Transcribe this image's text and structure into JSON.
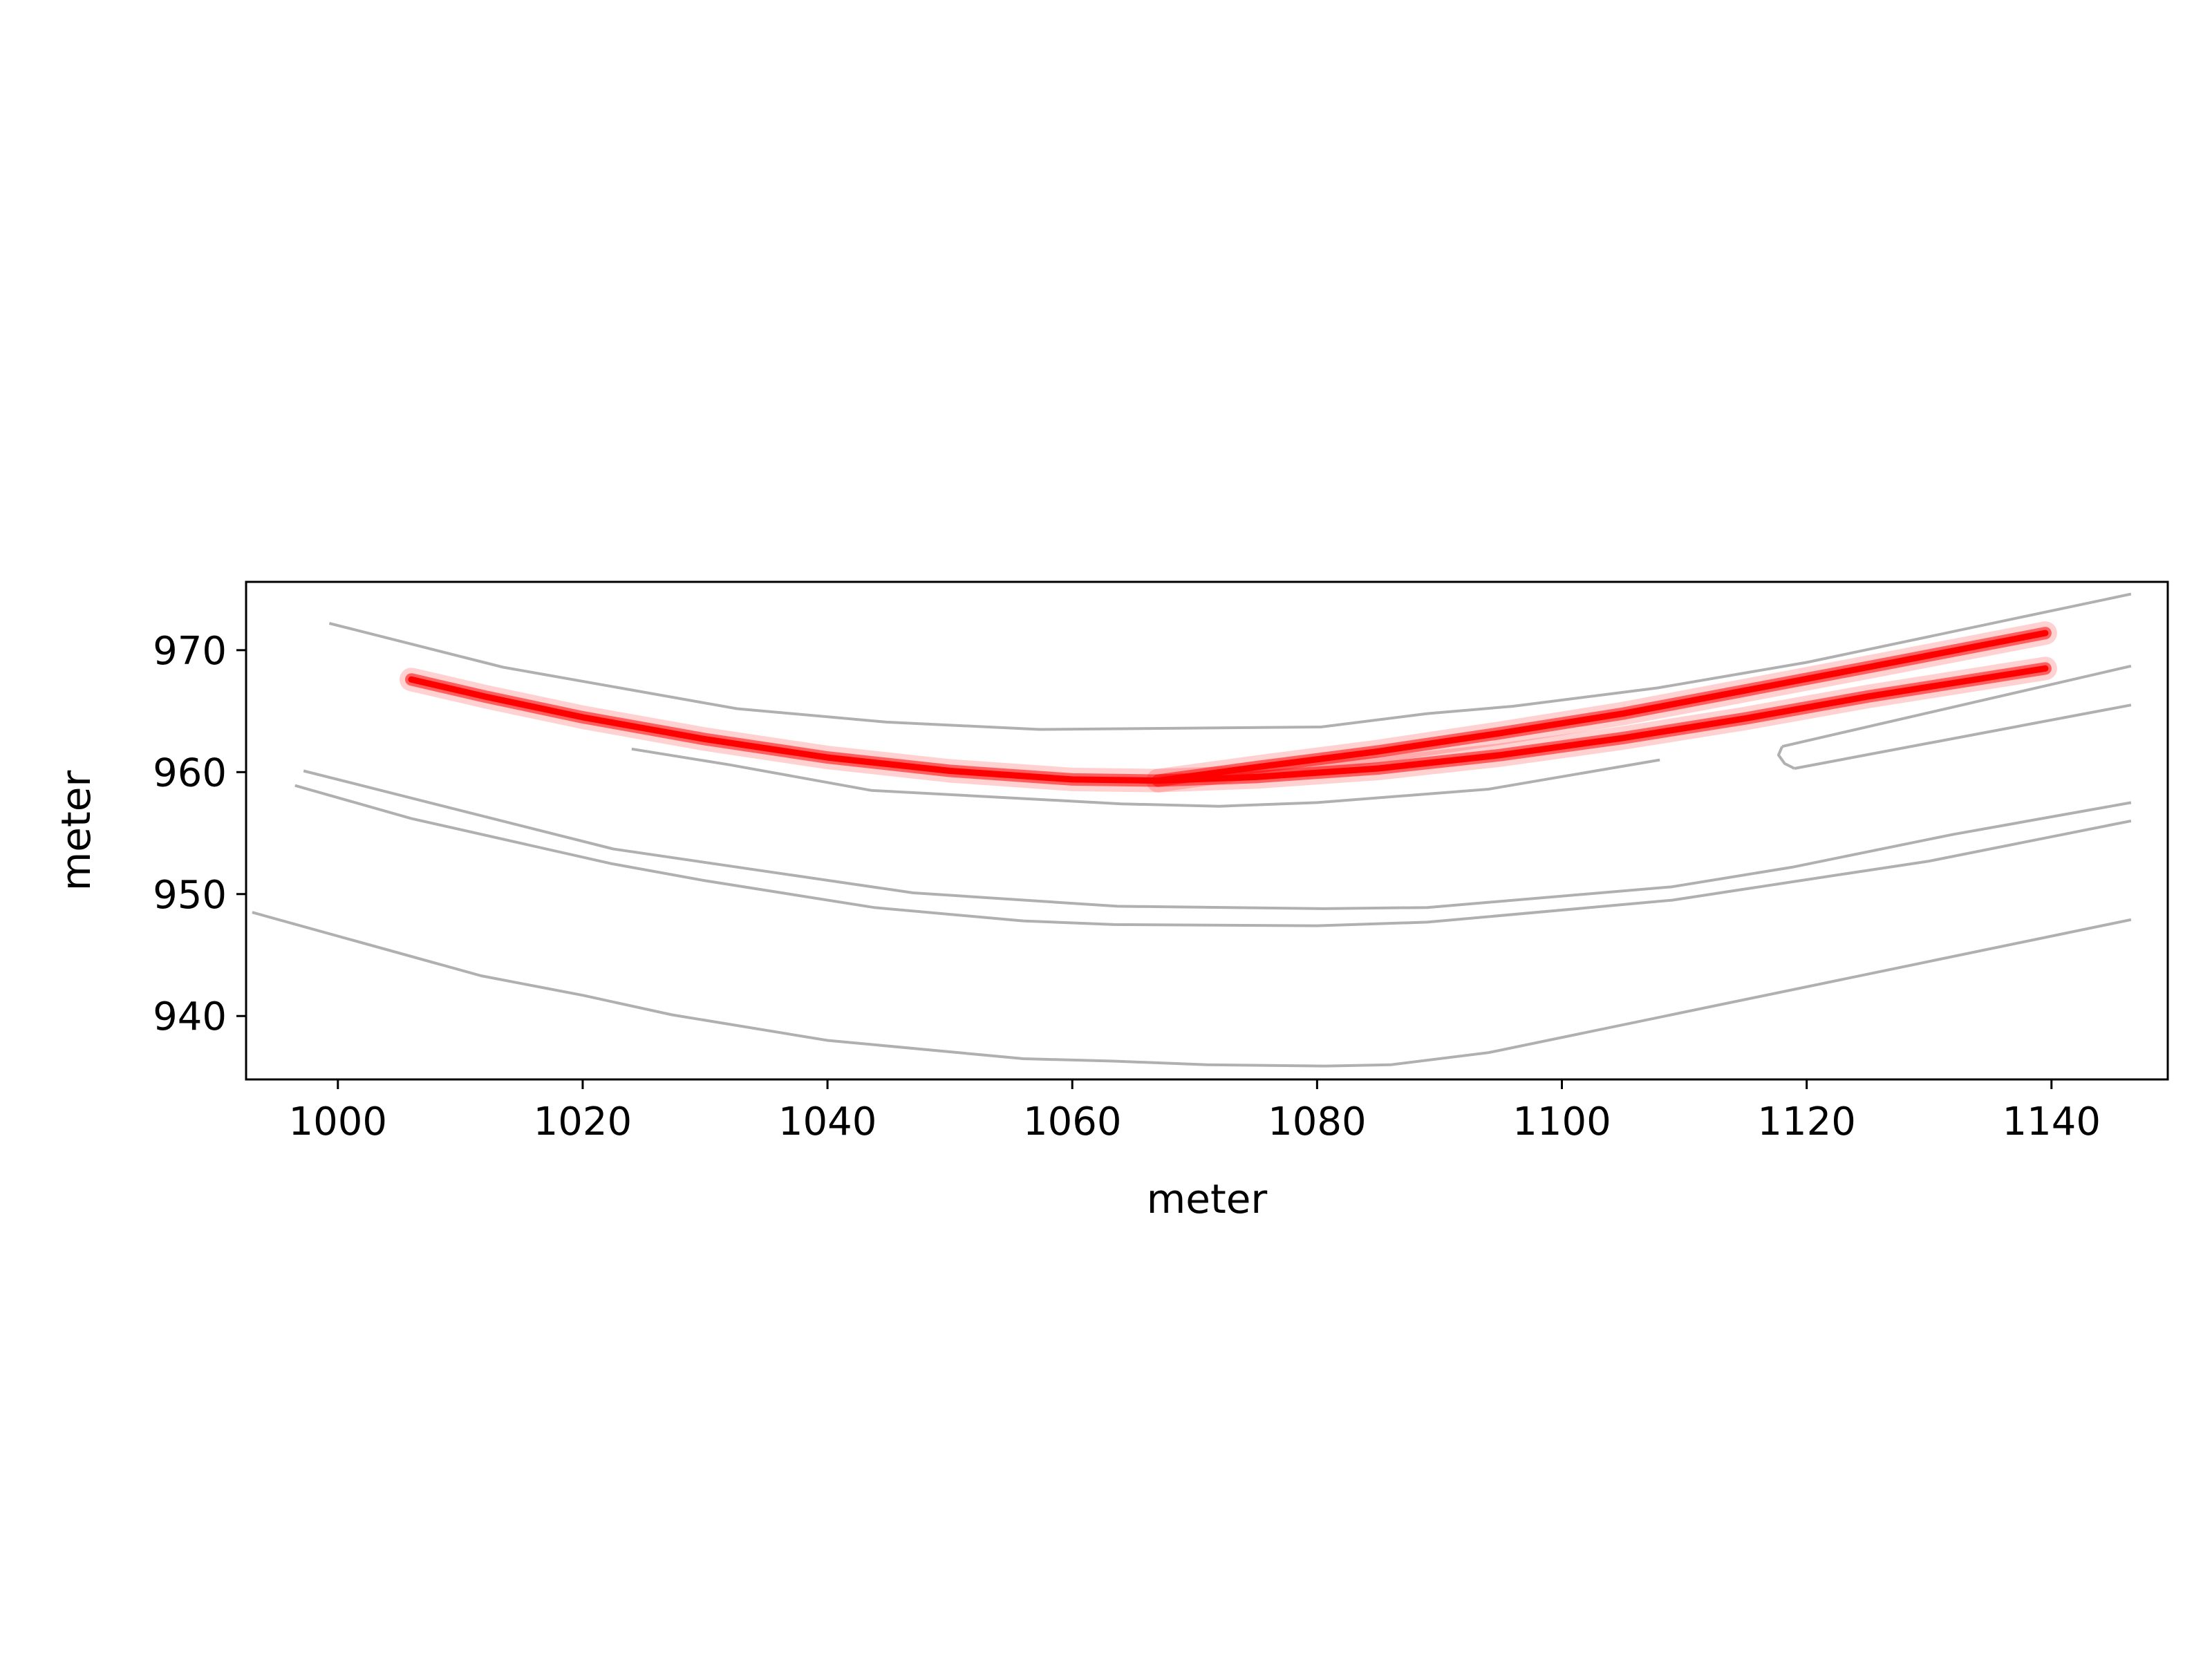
{
  "chart_data": {
    "type": "line",
    "title": "",
    "xlabel": "meter",
    "ylabel": "meter",
    "xlim": [
      992.5,
      1149.5
    ],
    "ylim": [
      934.8,
      975.6
    ],
    "xticks": [
      1000,
      1020,
      1040,
      1060,
      1080,
      1100,
      1120,
      1140
    ],
    "yticks": [
      940,
      950,
      960,
      970
    ],
    "grid": false,
    "legend": "none",
    "colors": {
      "road": "#b0b0b0",
      "trajectory": "#ff0000",
      "axes": "#000000"
    },
    "series": [
      {
        "kind": "road",
        "points": [
          [
            999.3,
            972.2
          ],
          [
            1013.5,
            968.6
          ],
          [
            1032.6,
            965.2
          ],
          [
            1044.8,
            964.1
          ],
          [
            1057.3,
            963.5
          ],
          [
            1080.3,
            963.7
          ],
          [
            1089.0,
            964.8
          ],
          [
            1096.0,
            965.4
          ],
          [
            1107.8,
            966.9
          ],
          [
            1120.0,
            969.0
          ],
          [
            1146.5,
            974.6
          ]
        ]
      },
      {
        "kind": "road",
        "points": [
          [
            1024.0,
            961.9
          ],
          [
            1032.0,
            960.6
          ],
          [
            1043.6,
            958.5
          ],
          [
            1064.0,
            957.4
          ],
          [
            1072.0,
            957.2
          ],
          [
            1080.0,
            957.5
          ],
          [
            1094.0,
            958.6
          ],
          [
            1108.0,
            961.0
          ]
        ]
      },
      {
        "kind": "road",
        "points": [
          [
            1118.0,
            962.1
          ],
          [
            1146.5,
            968.7
          ]
        ]
      },
      {
        "kind": "road",
        "points": [
          [
            1119.0,
            960.3
          ],
          [
            1146.5,
            965.5
          ]
        ]
      },
      {
        "kind": "road",
        "points": [
          [
            1118.0,
            962.1
          ],
          [
            1117.7,
            961.4
          ],
          [
            1118.2,
            960.7
          ],
          [
            1119.0,
            960.3
          ]
        ]
      },
      {
        "kind": "road",
        "points": [
          [
            997.2,
            960.1
          ],
          [
            1022.5,
            953.7
          ],
          [
            1047.0,
            950.1
          ],
          [
            1063.7,
            949.0
          ],
          [
            1080.5,
            948.8
          ],
          [
            1089.0,
            948.9
          ],
          [
            1109.0,
            950.6
          ],
          [
            1118.8,
            952.2
          ],
          [
            1132.0,
            954.9
          ],
          [
            1146.5,
            957.5
          ]
        ]
      },
      {
        "kind": "road",
        "points": [
          [
            996.5,
            958.9
          ],
          [
            1006.0,
            956.2
          ],
          [
            1022.3,
            952.5
          ],
          [
            1030.0,
            951.1
          ],
          [
            1043.8,
            948.9
          ],
          [
            1056.0,
            947.8
          ],
          [
            1063.4,
            947.5
          ],
          [
            1080.0,
            947.4
          ],
          [
            1089.0,
            947.7
          ],
          [
            1109.0,
            949.5
          ],
          [
            1118.8,
            951.0
          ],
          [
            1130.0,
            952.7
          ],
          [
            1146.5,
            956.0
          ]
        ]
      },
      {
        "kind": "road",
        "points": [
          [
            993.0,
            948.5
          ],
          [
            1011.7,
            943.3
          ],
          [
            1020.0,
            941.7
          ],
          [
            1027.3,
            940.1
          ],
          [
            1040.0,
            938.0
          ],
          [
            1056.0,
            936.5
          ],
          [
            1063.4,
            936.3
          ],
          [
            1071.0,
            936.0
          ],
          [
            1080.7,
            935.9
          ],
          [
            1086.0,
            936.0
          ],
          [
            1094.0,
            937.0
          ],
          [
            1146.5,
            947.9
          ]
        ]
      },
      {
        "kind": "trajectory",
        "points": [
          [
            1006.0,
            967.6
          ],
          [
            1012.0,
            966.2
          ],
          [
            1020.0,
            964.5
          ],
          [
            1030.0,
            962.7
          ],
          [
            1040.0,
            961.2
          ],
          [
            1050.0,
            960.1
          ],
          [
            1060.0,
            959.4
          ],
          [
            1067.0,
            959.3
          ],
          [
            1075.0,
            959.6
          ],
          [
            1085.0,
            960.3
          ],
          [
            1095.0,
            961.4
          ],
          [
            1105.0,
            962.8
          ],
          [
            1115.0,
            964.4
          ],
          [
            1125.0,
            966.2
          ],
          [
            1139.5,
            968.5
          ]
        ]
      },
      {
        "kind": "trajectory",
        "points": [
          [
            1067.0,
            959.3
          ],
          [
            1075.0,
            960.4
          ],
          [
            1085.0,
            961.7
          ],
          [
            1095.0,
            963.2
          ],
          [
            1105.0,
            964.8
          ],
          [
            1115.0,
            966.7
          ],
          [
            1125.0,
            968.6
          ],
          [
            1139.5,
            971.4
          ]
        ]
      }
    ]
  }
}
